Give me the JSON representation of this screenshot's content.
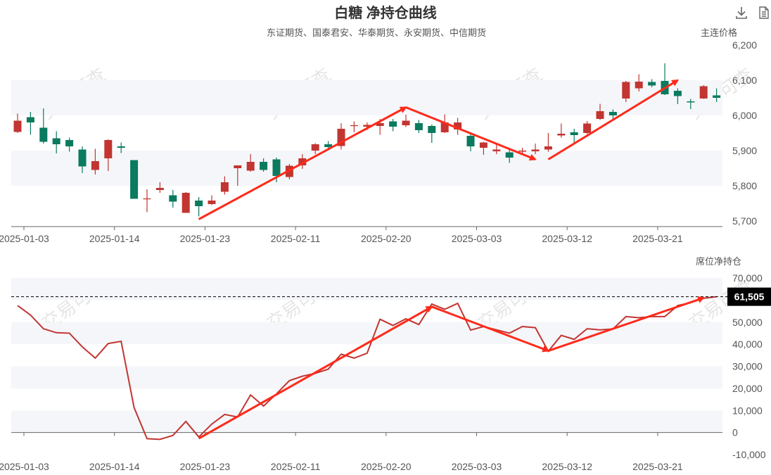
{
  "header": {
    "title": "白糖 净持仓曲线",
    "subtitle": "东证期货、国泰君安、华泰期货、永安期货、中信期货"
  },
  "toolbar": {
    "download_icon": "download-icon",
    "data_view_icon": "document-icon"
  },
  "watermark": "交易可查",
  "colors": {
    "up": "#c23531",
    "down": "#0b7a5e",
    "line": "#c23531",
    "arrow": "#ff2a1a",
    "band": "#f5f6fa",
    "axis": "#666666"
  },
  "chart_data": [
    {
      "type": "candlestick",
      "ylabel": "主连价格",
      "ylim": [
        5700,
        6200
      ],
      "yticks": [
        "5,700",
        "5,800",
        "5,900",
        "6,000",
        "6,100",
        "6,200"
      ],
      "xtick_labels": [
        "2025-01-03",
        "2025-01-14",
        "2025-01-23",
        "2025-02-11",
        "2025-02-20",
        "2025-03-03",
        "2025-03-12",
        "2025-03-21"
      ],
      "candles": [
        {
          "o": 5953,
          "c": 5985,
          "h": 6005,
          "l": 5950
        },
        {
          "o": 5995,
          "c": 5980,
          "h": 6010,
          "l": 5945
        },
        {
          "o": 5965,
          "c": 5925,
          "h": 6020,
          "l": 5920
        },
        {
          "o": 5935,
          "c": 5918,
          "h": 5955,
          "l": 5892
        },
        {
          "o": 5930,
          "c": 5912,
          "h": 5937,
          "l": 5897
        },
        {
          "o": 5903,
          "c": 5855,
          "h": 5912,
          "l": 5836
        },
        {
          "o": 5845,
          "c": 5870,
          "h": 5905,
          "l": 5832
        },
        {
          "o": 5878,
          "c": 5930,
          "h": 5932,
          "l": 5842
        },
        {
          "o": 5912,
          "c": 5908,
          "h": 5923,
          "l": 5893
        },
        {
          "o": 5873,
          "c": 5763,
          "h": 5873,
          "l": 5763
        },
        {
          "o": 5762,
          "c": 5764,
          "h": 5790,
          "l": 5725
        },
        {
          "o": 5788,
          "c": 5794,
          "h": 5810,
          "l": 5780
        },
        {
          "o": 5773,
          "c": 5755,
          "h": 5788,
          "l": 5738
        },
        {
          "o": 5723,
          "c": 5780,
          "h": 5782,
          "l": 5723
        },
        {
          "o": 5758,
          "c": 5742,
          "h": 5768,
          "l": 5713
        },
        {
          "o": 5748,
          "c": 5758,
          "h": 5773,
          "l": 5745
        },
        {
          "o": 5783,
          "c": 5810,
          "h": 5827,
          "l": 5775
        },
        {
          "o": 5850,
          "c": 5858,
          "h": 5855,
          "l": 5800
        },
        {
          "o": 5843,
          "c": 5868,
          "h": 5890,
          "l": 5840
        },
        {
          "o": 5868,
          "c": 5845,
          "h": 5878,
          "l": 5840
        },
        {
          "o": 5875,
          "c": 5828,
          "h": 5880,
          "l": 5810
        },
        {
          "o": 5825,
          "c": 5857,
          "h": 5862,
          "l": 5818
        },
        {
          "o": 5858,
          "c": 5878,
          "h": 5890,
          "l": 5848
        },
        {
          "o": 5900,
          "c": 5918,
          "h": 5921,
          "l": 5890
        },
        {
          "o": 5918,
          "c": 5910,
          "h": 5927,
          "l": 5903
        },
        {
          "o": 5913,
          "c": 5962,
          "h": 5978,
          "l": 5903
        },
        {
          "o": 5970,
          "c": 5972,
          "h": 5983,
          "l": 5952
        },
        {
          "o": 5968,
          "c": 5973,
          "h": 5980,
          "l": 5958
        },
        {
          "o": 5970,
          "c": 5978,
          "h": 5990,
          "l": 5945
        },
        {
          "o": 5983,
          "c": 5968,
          "h": 5990,
          "l": 5955
        },
        {
          "o": 5972,
          "c": 5985,
          "h": 6002,
          "l": 5967
        },
        {
          "o": 5978,
          "c": 5958,
          "h": 5987,
          "l": 5950
        },
        {
          "o": 5970,
          "c": 5950,
          "h": 5974,
          "l": 5922
        },
        {
          "o": 5952,
          "c": 5980,
          "h": 6003,
          "l": 5950
        },
        {
          "o": 5960,
          "c": 5980,
          "h": 5993,
          "l": 5945
        },
        {
          "o": 5942,
          "c": 5912,
          "h": 5950,
          "l": 5898
        },
        {
          "o": 5908,
          "c": 5923,
          "h": 5925,
          "l": 5888
        },
        {
          "o": 5898,
          "c": 5903,
          "h": 5918,
          "l": 5890
        },
        {
          "o": 5895,
          "c": 5880,
          "h": 5905,
          "l": 5865
        },
        {
          "o": 5897,
          "c": 5900,
          "h": 5908,
          "l": 5890
        },
        {
          "o": 5898,
          "c": 5903,
          "h": 5920,
          "l": 5890
        },
        {
          "o": 5903,
          "c": 5912,
          "h": 5950,
          "l": 5897
        },
        {
          "o": 5943,
          "c": 5948,
          "h": 5977,
          "l": 5937
        },
        {
          "o": 5952,
          "c": 5944,
          "h": 5962,
          "l": 5918
        },
        {
          "o": 5950,
          "c": 5977,
          "h": 5984,
          "l": 5947
        },
        {
          "o": 5990,
          "c": 6012,
          "h": 6033,
          "l": 5987
        },
        {
          "o": 6010,
          "c": 6000,
          "h": 6017,
          "l": 5990
        },
        {
          "o": 6048,
          "c": 6095,
          "h": 6098,
          "l": 6038
        },
        {
          "o": 6077,
          "c": 6096,
          "h": 6117,
          "l": 6068
        },
        {
          "o": 6095,
          "c": 6085,
          "h": 6103,
          "l": 6080
        },
        {
          "o": 6098,
          "c": 6060,
          "h": 6148,
          "l": 6058
        },
        {
          "o": 6070,
          "c": 6055,
          "h": 6077,
          "l": 6032
        },
        {
          "o": 6040,
          "c": 6037,
          "h": 6047,
          "l": 6018
        },
        {
          "o": 6048,
          "c": 6083,
          "h": 6086,
          "l": 6047
        },
        {
          "o": 6057,
          "c": 6050,
          "h": 6077,
          "l": 6038
        }
      ],
      "trend_arrows": [
        {
          "from_index": 14,
          "from_value": 5705,
          "to_index": 30,
          "to_value": 6023
        },
        {
          "from_index": 30,
          "from_value": 6023,
          "to_index": 40,
          "to_value": 5875
        },
        {
          "from_index": 41,
          "from_value": 5875,
          "to_index": 51,
          "to_value": 6100
        }
      ]
    },
    {
      "type": "line",
      "ylabel": "席位净持仓",
      "ylim": [
        -10000,
        70000
      ],
      "yticks": [
        "-10,000",
        "0",
        "10,000",
        "20,000",
        "30,000",
        "40,000",
        "50,000",
        "60,000",
        "70,000"
      ],
      "xtick_labels": [
        "2025-01-03",
        "2025-01-14",
        "2025-01-23",
        "2025-02-11",
        "2025-02-20",
        "2025-03-03",
        "2025-03-12",
        "2025-03-21"
      ],
      "last_value": 61505,
      "last_value_label": "61,505",
      "series": [
        {
          "values": [
            57500,
            53200,
            47000,
            45200,
            45000,
            38800,
            33700,
            40300,
            41300,
            11300,
            -2800,
            -3100,
            -1300,
            5000,
            -2000,
            3800,
            8200,
            7000,
            17000,
            12000,
            17500,
            23500,
            25500,
            26800,
            28700,
            35500,
            33700,
            35900,
            51300,
            48500,
            51500,
            48900,
            58200,
            55800,
            58500,
            46400,
            48000,
            46500,
            45000,
            48000,
            47500,
            36800,
            44000,
            42200,
            47000,
            46500,
            46900,
            52500,
            52000,
            52500,
            52500,
            57500,
            58800,
            60800,
            61505
          ]
        }
      ],
      "trend_arrows": [
        {
          "from_index": 14,
          "from_value": -2700,
          "to_index": 32,
          "to_value": 57000
        },
        {
          "from_index": 32,
          "from_value": 57000,
          "to_index": 41,
          "to_value": 37000
        },
        {
          "from_index": 41,
          "from_value": 37000,
          "to_index": 53,
          "to_value": 61000
        }
      ]
    }
  ]
}
